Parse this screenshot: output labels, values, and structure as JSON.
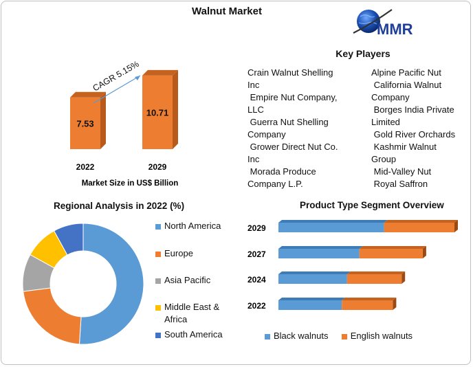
{
  "title": "Walnut Market",
  "logo_text": "MMR",
  "market_size": {
    "cagr_label": "CAGR 5.15%",
    "caption": "Market Size in US$ Billion",
    "chart_data": {
      "type": "bar",
      "categories": [
        "2022",
        "2029"
      ],
      "values": [
        7.53,
        10.71
      ],
      "value_labels": [
        "7.53",
        "10.71"
      ],
      "color": "#ED7D31"
    }
  },
  "key_players": {
    "title": "Key Players",
    "col1": [
      "Crain Walnut Shelling",
      "Inc",
      " Empire Nut Company,",
      "LLC",
      " Guerra Nut Shelling",
      "Company",
      " Grower Direct Nut Co.",
      "Inc",
      " Morada Produce",
      "Company L.P."
    ],
    "col2": [
      "Alpine Pacific Nut",
      " California Walnut",
      "Company",
      " Borges India Private",
      "Limited",
      " Gold River Orchards",
      " Kashmir Walnut",
      "Group",
      " Mid-Valley Nut",
      " Royal Saffron"
    ]
  },
  "regional": {
    "title": "Regional Analysis in 2022 (%)",
    "chart_data": {
      "type": "pie",
      "labels": [
        "North America",
        "Europe",
        "Asia Pacific",
        "Middle East &\nAfrica",
        "South America"
      ],
      "values": [
        51,
        22,
        10,
        9,
        8
      ],
      "colors": [
        "#5B9BD5",
        "#ED7D31",
        "#A5A5A5",
        "#FFC000",
        "#4472C4"
      ]
    },
    "legend": [
      "North America",
      "Europe",
      "Asia Pacific",
      "Middle East &",
      "Africa",
      "South America"
    ]
  },
  "product_type": {
    "title": "Product Type Segment Overview",
    "chart_data": {
      "type": "bar",
      "orientation": "horizontal",
      "stacked": true,
      "categories": [
        "2029",
        "2027",
        "2024",
        "2022"
      ],
      "series": [
        {
          "name": "Black walnuts",
          "values": [
            6.0,
            4.6,
            3.9,
            3.6
          ],
          "color": "#5B9BD5"
        },
        {
          "name": "English walnuts",
          "values": [
            4.0,
            3.6,
            3.1,
            2.9
          ],
          "color": "#ED7D31"
        }
      ]
    },
    "legend": [
      "Black walnuts",
      "English walnuts"
    ]
  }
}
